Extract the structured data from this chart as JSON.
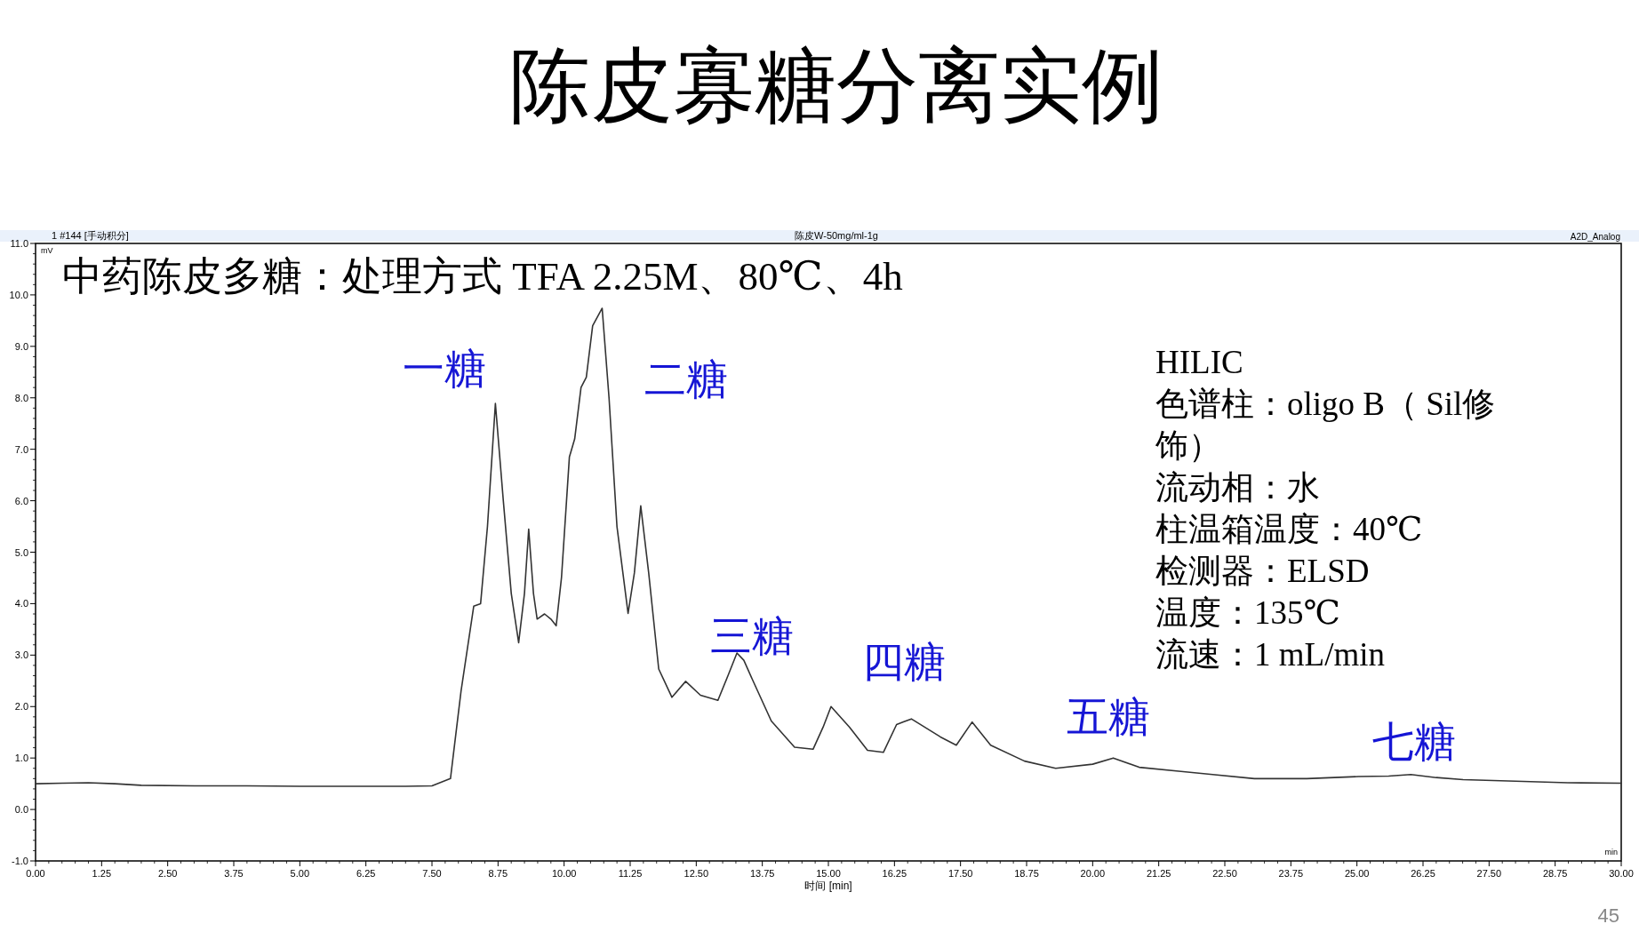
{
  "chart_data": {
    "type": "line",
    "title": "陈皮寡糖分离实例",
    "subtitle": "中药陈皮多糖：处理方式 TFA 2.25M、80℃、4h",
    "xlabel": "时间 [min]",
    "ylabel": "mV",
    "series": [
      {
        "color": "#333333",
        "x": [
          0,
          0.5,
          1.0,
          1.5,
          2.0,
          3.0,
          4.0,
          5.0,
          6.0,
          7.0,
          7.5,
          7.85,
          8.05,
          8.29,
          8.42,
          8.55,
          8.7,
          8.85,
          9.0,
          9.14,
          9.25,
          9.33,
          9.42,
          9.49,
          9.63,
          9.75,
          9.85,
          9.95,
          10.1,
          10.2,
          10.32,
          10.42,
          10.54,
          10.72,
          10.85,
          11.0,
          11.21,
          11.33,
          11.45,
          11.6,
          11.79,
          12.04,
          12.3,
          12.58,
          12.91,
          13.1,
          13.27,
          13.4,
          13.56,
          13.92,
          14.36,
          14.71,
          14.9,
          15.05,
          15.4,
          15.74,
          16.04,
          16.29,
          16.57,
          17.12,
          17.42,
          17.72,
          18.07,
          18.71,
          19.3,
          20.0,
          20.39,
          20.88,
          21.67,
          22.27,
          23.06,
          24.05,
          25.03,
          25.6,
          26.02,
          26.5,
          27.01,
          28.0,
          28.99,
          30.0
        ],
        "values": [
          0.5,
          0.51,
          0.52,
          0.5,
          0.47,
          0.46,
          0.46,
          0.45,
          0.45,
          0.45,
          0.46,
          0.6,
          2.3,
          3.95,
          4.0,
          5.5,
          7.89,
          6.0,
          4.2,
          3.24,
          4.2,
          5.45,
          4.2,
          3.7,
          3.8,
          3.7,
          3.57,
          4.5,
          6.85,
          7.2,
          8.2,
          8.4,
          9.4,
          9.74,
          8.0,
          5.5,
          3.81,
          4.6,
          5.9,
          4.6,
          2.73,
          2.18,
          2.49,
          2.22,
          2.12,
          2.6,
          3.04,
          2.9,
          2.53,
          1.72,
          1.21,
          1.17,
          1.6,
          2.0,
          1.6,
          1.15,
          1.11,
          1.65,
          1.76,
          1.41,
          1.25,
          1.7,
          1.25,
          0.94,
          0.8,
          0.88,
          1.0,
          0.82,
          0.74,
          0.68,
          0.6,
          0.6,
          0.64,
          0.65,
          0.68,
          0.62,
          0.58,
          0.55,
          0.52,
          0.51
        ]
      }
    ],
    "xlim": [
      0,
      30
    ],
    "ylim": [
      -1,
      11
    ],
    "xticks": [
      {
        "value": 0,
        "label": "0.00"
      },
      {
        "value": 1.25,
        "label": "1.25"
      },
      {
        "value": 2.5,
        "label": "2.50"
      },
      {
        "value": 3.75,
        "label": "3.75"
      },
      {
        "value": 5,
        "label": "5.00"
      },
      {
        "value": 6.25,
        "label": "6.25"
      },
      {
        "value": 7.5,
        "label": "7.50"
      },
      {
        "value": 8.75,
        "label": "8.75"
      },
      {
        "value": 10,
        "label": "10.00"
      },
      {
        "value": 11.25,
        "label": "11.25"
      },
      {
        "value": 12.5,
        "label": "12.50"
      },
      {
        "value": 13.75,
        "label": "13.75"
      },
      {
        "value": 15,
        "label": "15.00"
      },
      {
        "value": 16.25,
        "label": "16.25"
      },
      {
        "value": 17.5,
        "label": "17.50"
      },
      {
        "value": 18.75,
        "label": "18.75"
      },
      {
        "value": 20,
        "label": "20.00"
      },
      {
        "value": 21.25,
        "label": "21.25"
      },
      {
        "value": 22.5,
        "label": "22.50"
      },
      {
        "value": 23.75,
        "label": "23.75"
      },
      {
        "value": 25,
        "label": "25.00"
      },
      {
        "value": 26.25,
        "label": "26.25"
      },
      {
        "value": 27.5,
        "label": "27.50"
      },
      {
        "value": 28.75,
        "label": "28.75"
      },
      {
        "value": 30,
        "label": "30.00"
      }
    ],
    "yticks": [
      {
        "value": -1,
        "label": "-1.0"
      },
      {
        "value": 0,
        "label": "0.0"
      },
      {
        "value": 1,
        "label": "1.0"
      },
      {
        "value": 2,
        "label": "2.0"
      },
      {
        "value": 3,
        "label": "3.0"
      },
      {
        "value": 4,
        "label": "4.0"
      },
      {
        "value": 5,
        "label": "5.0"
      },
      {
        "value": 6,
        "label": "6.0"
      },
      {
        "value": 7,
        "label": "7.0"
      },
      {
        "value": 8,
        "label": "8.0"
      },
      {
        "value": 9,
        "label": "9.0"
      },
      {
        "value": 10,
        "label": "10.0"
      },
      {
        "value": 11,
        "label": "11.0"
      }
    ],
    "annotations": [
      "1 #144 [手动积分]",
      "陈皮W-50mg/ml-1g",
      "A2D_Analog",
      "min",
      "HILIC",
      "色谱柱：oligo B（ Sil修饰）",
      "流动相：水",
      "柱温箱温度：40℃",
      "检测器：ELSD",
      "温度：135℃",
      "流速：1 mL/min",
      "45",
      "一糖",
      "二糖",
      "三糖",
      "四糖",
      "五糖",
      "七糖"
    ]
  }
}
